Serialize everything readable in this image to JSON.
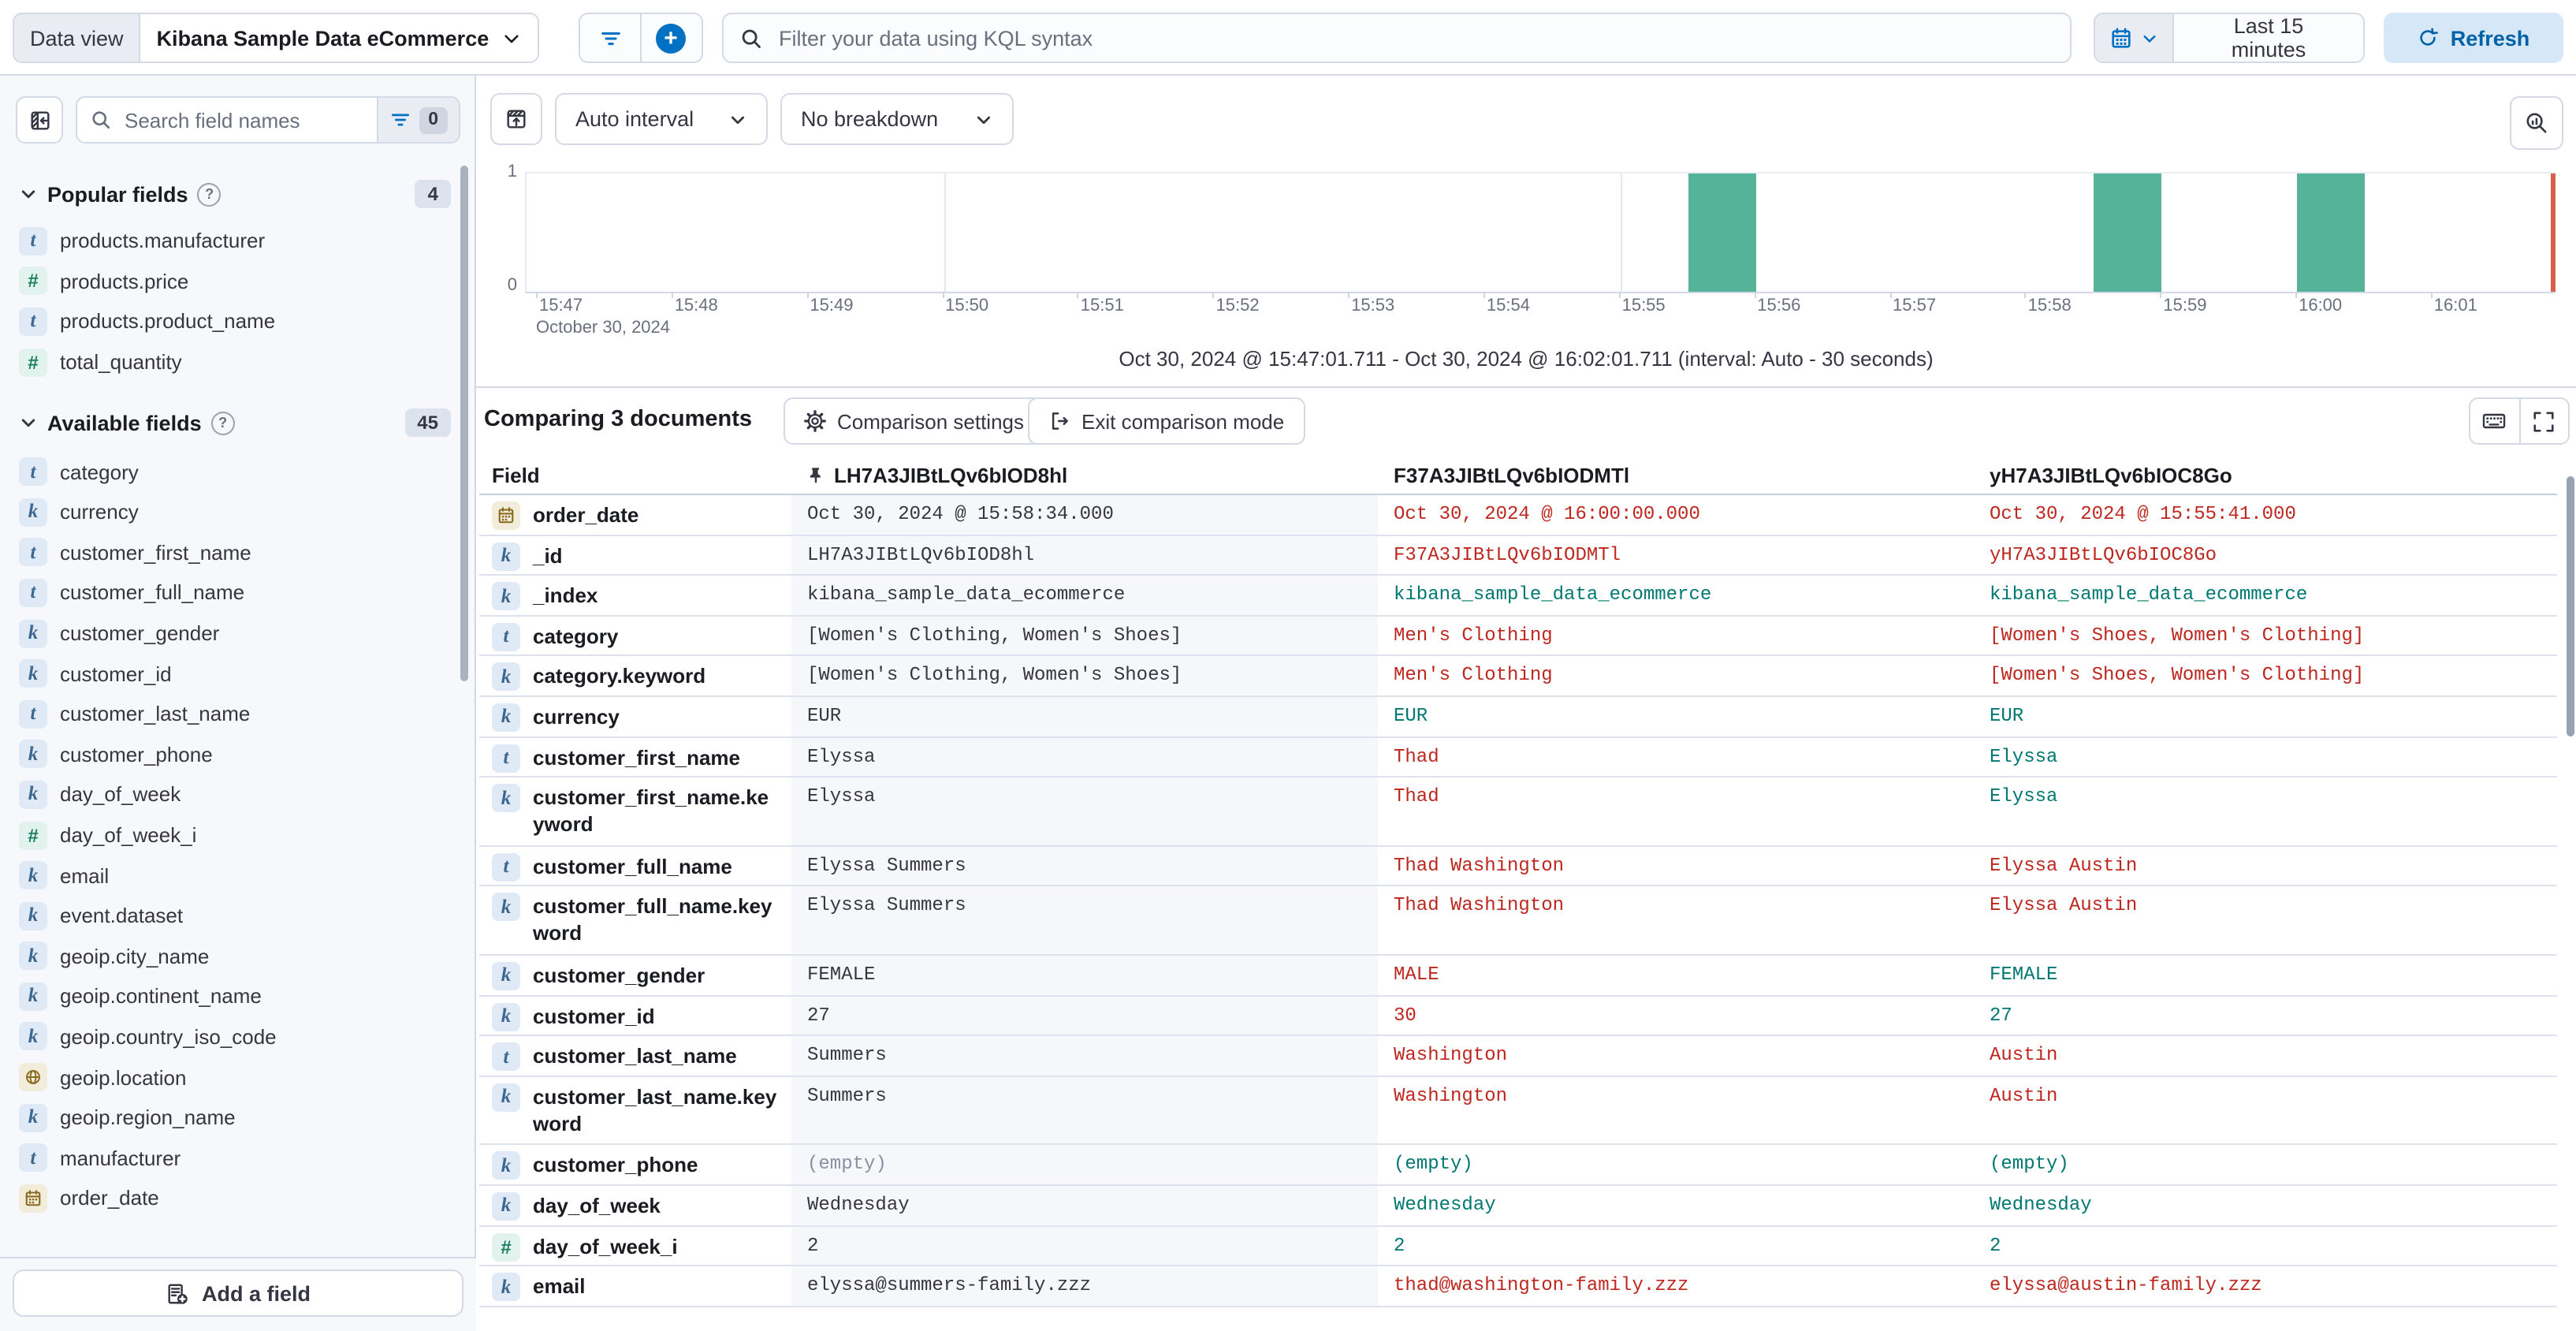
{
  "top_bar": {
    "data_view_label": "Data view",
    "data_view_value": "Kibana Sample Data eCommerce",
    "kql_placeholder": "Filter your data using KQL syntax",
    "time_range": "Last 15 minutes",
    "refresh_label": "Refresh"
  },
  "sidebar": {
    "search_placeholder": "Search field names",
    "filter_count": "0",
    "popular": {
      "title": "Popular fields",
      "count": "4",
      "items": [
        {
          "type": "t",
          "name": "products.manufacturer"
        },
        {
          "type": "num",
          "name": "products.price"
        },
        {
          "type": "t",
          "name": "products.product_name"
        },
        {
          "type": "num",
          "name": "total_quantity"
        }
      ]
    },
    "available": {
      "title": "Available fields",
      "count": "45",
      "items": [
        {
          "type": "t",
          "name": "category"
        },
        {
          "type": "k",
          "name": "currency"
        },
        {
          "type": "t",
          "name": "customer_first_name"
        },
        {
          "type": "t",
          "name": "customer_full_name"
        },
        {
          "type": "k",
          "name": "customer_gender"
        },
        {
          "type": "k",
          "name": "customer_id"
        },
        {
          "type": "t",
          "name": "customer_last_name"
        },
        {
          "type": "k",
          "name": "customer_phone"
        },
        {
          "type": "k",
          "name": "day_of_week"
        },
        {
          "type": "num",
          "name": "day_of_week_i"
        },
        {
          "type": "k",
          "name": "email"
        },
        {
          "type": "k",
          "name": "event.dataset"
        },
        {
          "type": "k",
          "name": "geoip.city_name"
        },
        {
          "type": "k",
          "name": "geoip.continent_name"
        },
        {
          "type": "k",
          "name": "geoip.country_iso_code"
        },
        {
          "type": "geo",
          "name": "geoip.location"
        },
        {
          "type": "k",
          "name": "geoip.region_name"
        },
        {
          "type": "t",
          "name": "manufacturer"
        },
        {
          "type": "date",
          "name": "order_date"
        }
      ]
    },
    "add_field_label": "Add a field"
  },
  "chart": {
    "interval_label": "Auto interval",
    "breakdown_label": "No breakdown",
    "y_ticks": [
      "1",
      "0"
    ],
    "x_ticks": [
      "15:47",
      "15:48",
      "15:49",
      "15:50",
      "15:51",
      "15:52",
      "15:53",
      "15:54",
      "15:55",
      "15:56",
      "15:57",
      "15:58",
      "15:59",
      "16:00",
      "16:01"
    ],
    "gridlines": [
      "15:50",
      "15:55",
      "16:00"
    ],
    "x_context": "October 30, 2024",
    "caption": "Oct 30, 2024 @ 15:47:01.711 - Oct 30, 2024 @ 16:02:01.711 (interval: Auto - 30 seconds)",
    "bar_color": "#54b399",
    "marker_color": "#d6604d",
    "chart_data": {
      "type": "bar",
      "x_axis": "order_date per 30 seconds",
      "y_domain": [
        0,
        1
      ],
      "bars": [
        {
          "time": "15:55:30",
          "value": 1
        },
        {
          "time": "15:58:30",
          "value": 1
        },
        {
          "time": "16:00:00",
          "value": 1
        }
      ]
    }
  },
  "comparison": {
    "title": "Comparing 3 documents",
    "settings_label": "Comparison settings",
    "exit_label": "Exit comparison mode"
  },
  "table": {
    "field_header": "Field",
    "doc_headers": [
      "LH7A3JIBtLQv6bIOD8hl",
      "F37A3JIBtLQv6bIODMTl",
      "yH7A3JIBtLQv6bIOC8Go"
    ],
    "rows": [
      {
        "field": "order_date",
        "type": "date",
        "wrap": false,
        "values": [
          {
            "t": "Oct 30, 2024 @ 15:58:34.000",
            "s": "plain"
          },
          {
            "t": "Oct 30, 2024 @ 16:00:00.000",
            "s": "diff"
          },
          {
            "t": "Oct 30, 2024 @ 15:55:41.000",
            "s": "diff"
          }
        ]
      },
      {
        "field": "_id",
        "type": "k",
        "wrap": false,
        "values": [
          {
            "t": "LH7A3JIBtLQv6bIOD8hl",
            "s": "plain"
          },
          {
            "t": "F37A3JIBtLQv6bIODMTl",
            "s": "diff"
          },
          {
            "t": "yH7A3JIBtLQv6bIOC8Go",
            "s": "diff"
          }
        ]
      },
      {
        "field": "_index",
        "type": "k",
        "wrap": false,
        "values": [
          {
            "t": "kibana_sample_data_ecommerce",
            "s": "plain"
          },
          {
            "t": "kibana_sample_data_ecommerce",
            "s": "match"
          },
          {
            "t": "kibana_sample_data_ecommerce",
            "s": "match"
          }
        ]
      },
      {
        "field": "category",
        "type": "t",
        "wrap": false,
        "values": [
          {
            "t": "[Women's Clothing, Women's Shoes]",
            "s": "plain"
          },
          {
            "t": "Men's Clothing",
            "s": "diff"
          },
          {
            "t": "[Women's Shoes, Women's Clothing]",
            "s": "diff"
          }
        ]
      },
      {
        "field": "category.keyword",
        "type": "k",
        "wrap": false,
        "values": [
          {
            "t": "[Women's Clothing, Women's Shoes]",
            "s": "plain"
          },
          {
            "t": "Men's Clothing",
            "s": "diff"
          },
          {
            "t": "[Women's Shoes, Women's Clothing]",
            "s": "diff"
          }
        ]
      },
      {
        "field": "currency",
        "type": "k",
        "wrap": false,
        "values": [
          {
            "t": "EUR",
            "s": "plain"
          },
          {
            "t": "EUR",
            "s": "match"
          },
          {
            "t": "EUR",
            "s": "match"
          }
        ]
      },
      {
        "field": "customer_first_name",
        "type": "t",
        "wrap": false,
        "values": [
          {
            "t": "Elyssa",
            "s": "plain"
          },
          {
            "t": "Thad",
            "s": "diff"
          },
          {
            "t": "Elyssa",
            "s": "match"
          }
        ]
      },
      {
        "field": "customer_first_name.keyword",
        "type": "k",
        "wrap": true,
        "values": [
          {
            "t": "Elyssa",
            "s": "plain"
          },
          {
            "t": "Thad",
            "s": "diff"
          },
          {
            "t": "Elyssa",
            "s": "match"
          }
        ]
      },
      {
        "field": "customer_full_name",
        "type": "t",
        "wrap": false,
        "values": [
          {
            "t": "Elyssa Summers",
            "s": "plain"
          },
          {
            "t": "Thad Washington",
            "s": "diff"
          },
          {
            "t": "Elyssa Austin",
            "s": "diff"
          }
        ]
      },
      {
        "field": "customer_full_name.keyword",
        "type": "k",
        "wrap": true,
        "values": [
          {
            "t": "Elyssa Summers",
            "s": "plain"
          },
          {
            "t": "Thad Washington",
            "s": "diff"
          },
          {
            "t": "Elyssa Austin",
            "s": "diff"
          }
        ]
      },
      {
        "field": "customer_gender",
        "type": "k",
        "wrap": false,
        "values": [
          {
            "t": "FEMALE",
            "s": "plain"
          },
          {
            "t": "MALE",
            "s": "diff"
          },
          {
            "t": "FEMALE",
            "s": "match"
          }
        ]
      },
      {
        "field": "customer_id",
        "type": "k",
        "wrap": false,
        "values": [
          {
            "t": "27",
            "s": "plain"
          },
          {
            "t": "30",
            "s": "diff"
          },
          {
            "t": "27",
            "s": "match"
          }
        ]
      },
      {
        "field": "customer_last_name",
        "type": "t",
        "wrap": false,
        "values": [
          {
            "t": "Summers",
            "s": "plain"
          },
          {
            "t": "Washington",
            "s": "diff"
          },
          {
            "t": "Austin",
            "s": "diff"
          }
        ]
      },
      {
        "field": "customer_last_name.keyword",
        "type": "k",
        "wrap": true,
        "values": [
          {
            "t": "Summers",
            "s": "plain"
          },
          {
            "t": "Washington",
            "s": "diff"
          },
          {
            "t": "Austin",
            "s": "diff"
          }
        ]
      },
      {
        "field": "customer_phone",
        "type": "k",
        "wrap": false,
        "values": [
          {
            "t": "(empty)",
            "s": "subdued"
          },
          {
            "t": "(empty)",
            "s": "match"
          },
          {
            "t": "(empty)",
            "s": "match"
          }
        ]
      },
      {
        "field": "day_of_week",
        "type": "k",
        "wrap": false,
        "values": [
          {
            "t": "Wednesday",
            "s": "plain"
          },
          {
            "t": "Wednesday",
            "s": "match"
          },
          {
            "t": "Wednesday",
            "s": "match"
          }
        ]
      },
      {
        "field": "day_of_week_i",
        "type": "num",
        "wrap": false,
        "values": [
          {
            "t": "2",
            "s": "plain"
          },
          {
            "t": "2",
            "s": "match"
          },
          {
            "t": "2",
            "s": "match"
          }
        ]
      },
      {
        "field": "email",
        "type": "k",
        "wrap": false,
        "values": [
          {
            "t": "elyssa@summers-family.zzz",
            "s": "plain"
          },
          {
            "t": "thad@washington-family.zzz",
            "s": "diff"
          },
          {
            "t": "elyssa@austin-family.zzz",
            "s": "diff"
          }
        ]
      }
    ]
  }
}
